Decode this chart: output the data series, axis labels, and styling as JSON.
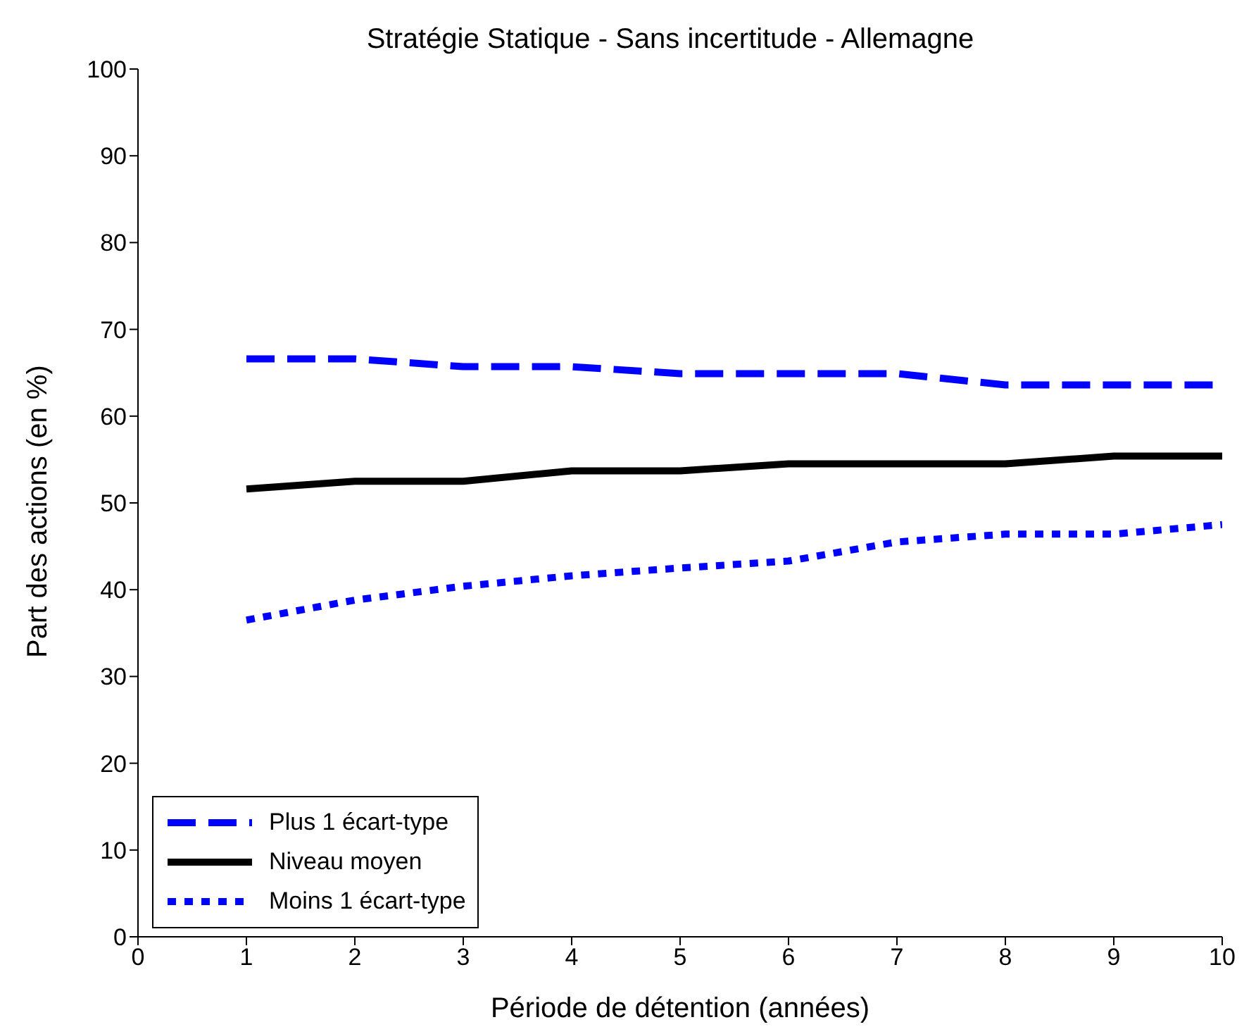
{
  "chart_data": {
    "type": "line",
    "title": "Stratégie Statique - Sans incertitude - Allemagne",
    "xlabel": "Période de détention (années)",
    "ylabel": "Part des actions (en %)",
    "x": [
      1,
      2,
      3,
      4,
      5,
      6,
      7,
      8,
      9,
      10
    ],
    "series": [
      {
        "name": "Plus 1 écart-type",
        "color": "#0000ff",
        "line_style": "dashed",
        "values": [
          66.6,
          66.6,
          65.7,
          65.7,
          64.9,
          64.9,
          64.9,
          63.6,
          63.6,
          63.6
        ]
      },
      {
        "name": "Niveau moyen",
        "color": "#000000",
        "line_style": "solid",
        "values": [
          51.6,
          52.5,
          52.5,
          53.7,
          53.7,
          54.5,
          54.5,
          54.5,
          55.4,
          55.4
        ]
      },
      {
        "name": "Moins 1 écart-type",
        "color": "#0000ff",
        "line_style": "dotted",
        "values": [
          36.5,
          38.8,
          40.4,
          41.6,
          42.5,
          43.3,
          45.5,
          46.4,
          46.4,
          47.5
        ]
      }
    ],
    "xlim": [
      0,
      10
    ],
    "xticks": [
      0,
      1,
      2,
      3,
      4,
      5,
      6,
      7,
      8,
      9,
      10
    ],
    "ylim": [
      0,
      100
    ],
    "yticks": [
      0,
      10,
      20,
      30,
      40,
      50,
      60,
      70,
      80,
      90,
      100
    ],
    "legend": "bottom left",
    "marker": "none",
    "grid": false
  }
}
